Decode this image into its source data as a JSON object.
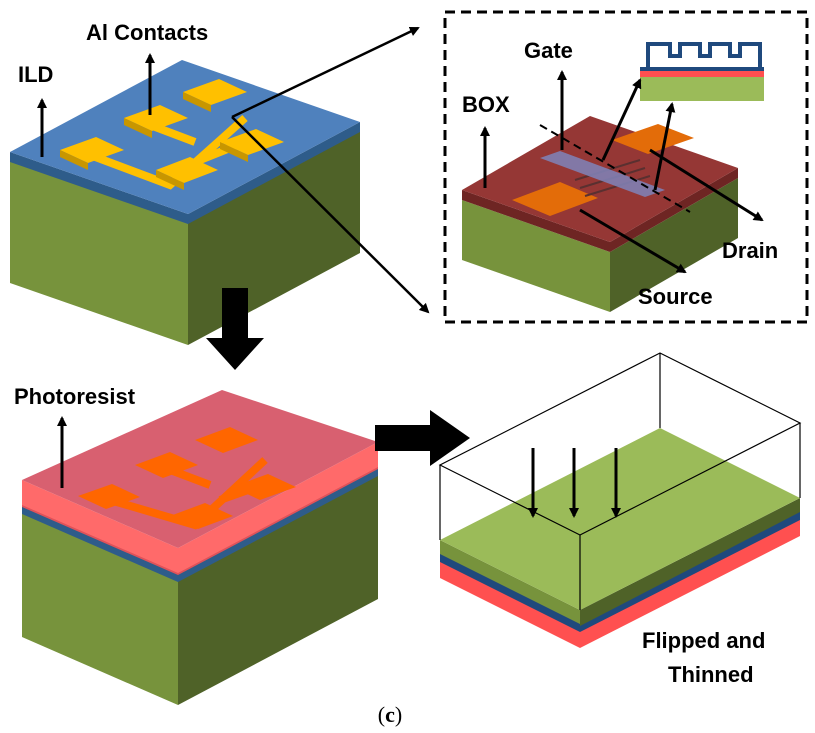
{
  "labels": {
    "al_contacts": "Al Contacts",
    "ild": "ILD",
    "gate": "Gate",
    "box": "BOX",
    "drain": "Drain",
    "source": "Source",
    "photoresist": "Photoresist",
    "flipped_line1": "Flipped and",
    "flipped_line2": "Thinned"
  },
  "caption": {
    "open": "(",
    "letter": "c",
    "close": ")"
  },
  "colors": {
    "substrate_top": "#9bbb59",
    "substrate_front": "#77933c",
    "substrate_side": "#4f6228",
    "ild_top": "#4f81bd",
    "ild_edge": "#2e5c8a",
    "contact_top": "#ffc000",
    "contact_side": "#c89600",
    "box_top": "#953735",
    "box_edge": "#6e2523",
    "sd_pad": "#e36c09",
    "gate_strip": "#7f7fb2",
    "resist": "#ff5050",
    "resist_top": "#d86070",
    "resist_pad": "#ff6600",
    "dark_navy": "#1f497d"
  }
}
